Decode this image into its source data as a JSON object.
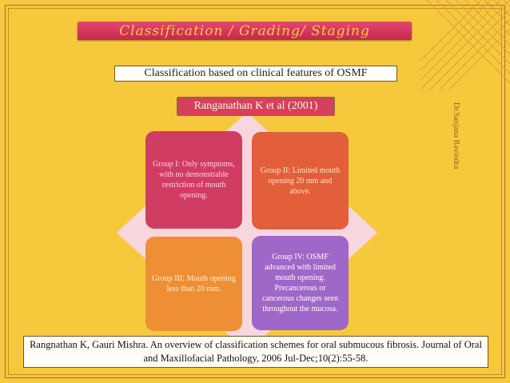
{
  "title": "Classification / Grading/ Staging",
  "subtitle": "Classification based on clinical features of OSMF",
  "author_label": "Ranganathan K et al (2001)",
  "side_credit": "Dr.Sanjana Ravindra",
  "groups": [
    {
      "text": "Group I: Only symptoms, with no demonstrable restriction of mouth opening."
    },
    {
      "text": "Group II: Limited mouth opening 20 mm and above."
    },
    {
      "text": "Group III: Mouth opening less than 20 mm."
    },
    {
      "text": "Group IV: OSMF advanced with limited mouth opening. Precancerous or cancerous changes seen throughout the mucosa."
    }
  ],
  "citation": "Rangnathan K, Gauri Mishra. An overview of classification schemes for oral submucous fibrosis. Journal of Oral and Maxillofacial Pathology, 2006 Jul-Dec;10(2):55-58.",
  "colors": {
    "background": "#f6c93c",
    "title_bar": "#d3325a",
    "group1": "#d13c63",
    "group2": "#e25f3a",
    "group3": "#ee8f36",
    "group4": "#9f67c7",
    "diamond": "#f7d6de"
  }
}
